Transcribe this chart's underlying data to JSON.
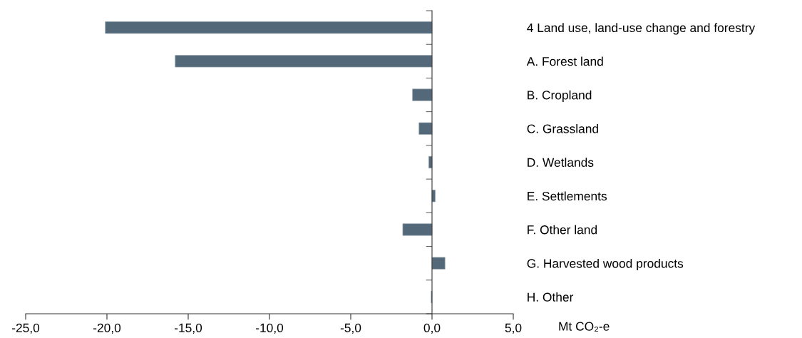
{
  "chart_data": {
    "type": "bar",
    "orientation": "horizontal",
    "xlabel": "Mt CO₂-e",
    "categories": [
      "4 Land use, land-use change and forestry",
      "A. Forest land",
      "B. Cropland",
      "C. Grassland",
      "D. Wetlands",
      "E. Settlements",
      "F. Other land",
      "G. Harvested wood products",
      "H. Other"
    ],
    "values": [
      -20.1,
      -15.8,
      -1.2,
      -0.8,
      -0.2,
      0.2,
      -1.8,
      0.8,
      -0.05
    ],
    "color": "#536878",
    "xlim": [
      -25,
      5
    ],
    "xticks": [
      {
        "value": -25,
        "label": "-25,0"
      },
      {
        "value": -20,
        "label": "-20,0"
      },
      {
        "value": -15,
        "label": "-15,0"
      },
      {
        "value": -10,
        "label": "-10,0"
      },
      {
        "value": -5,
        "label": "-5,0"
      },
      {
        "value": 0,
        "label": "0,0"
      },
      {
        "value": 5,
        "label": "5,0"
      }
    ],
    "legend": false
  }
}
